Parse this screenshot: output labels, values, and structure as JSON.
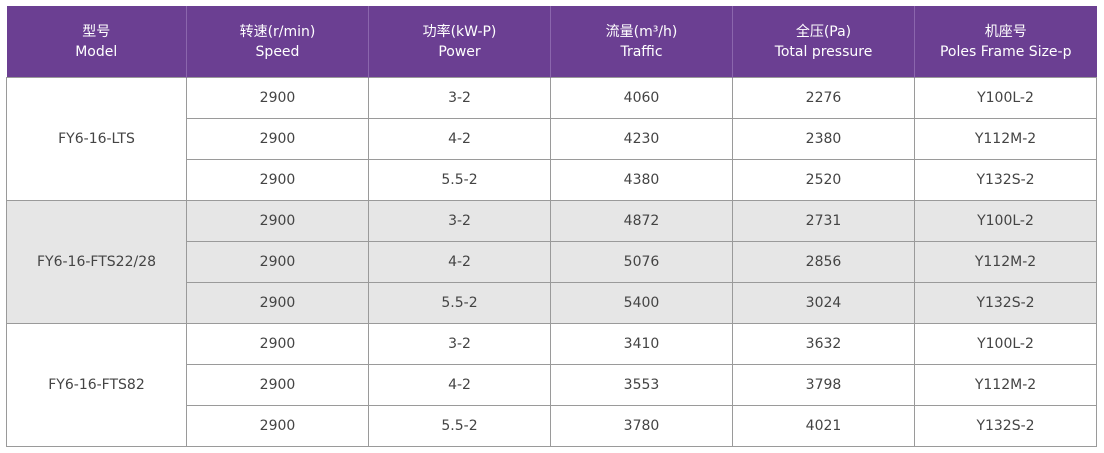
{
  "table": {
    "headers": [
      {
        "cn": "型号",
        "en": "Model"
      },
      {
        "cn": "转速(r/min)",
        "en": "Speed"
      },
      {
        "cn": "功率(kW-P)",
        "en": "Power"
      },
      {
        "cn": "流量(m³/h)",
        "en": "Traffic"
      },
      {
        "cn": "全压(Pa)",
        "en": "Total pressure"
      },
      {
        "cn": "机座号",
        "en": "Poles Frame Size-p"
      }
    ],
    "groups": [
      {
        "model": "FY6-16-LTS",
        "background": "#ffffff",
        "rows": [
          {
            "speed": "2900",
            "power": "3-2",
            "traffic": "4060",
            "pressure": "2276",
            "frame": "Y100L-2"
          },
          {
            "speed": "2900",
            "power": "4-2",
            "traffic": "4230",
            "pressure": "2380",
            "frame": "Y112M-2"
          },
          {
            "speed": "2900",
            "power": "5.5-2",
            "traffic": "4380",
            "pressure": "2520",
            "frame": "Y132S-2"
          }
        ]
      },
      {
        "model": "FY6-16-FTS22/28",
        "background": "#e6e6e6",
        "rows": [
          {
            "speed": "2900",
            "power": "3-2",
            "traffic": "4872",
            "pressure": "2731",
            "frame": "Y100L-2"
          },
          {
            "speed": "2900",
            "power": "4-2",
            "traffic": "5076",
            "pressure": "2856",
            "frame": "Y112M-2"
          },
          {
            "speed": "2900",
            "power": "5.5-2",
            "traffic": "5400",
            "pressure": "3024",
            "frame": "Y132S-2"
          }
        ]
      },
      {
        "model": "FY6-16-FTS82",
        "background": "#ffffff",
        "rows": [
          {
            "speed": "2900",
            "power": "3-2",
            "traffic": "3410",
            "pressure": "3632",
            "frame": "Y100L-2"
          },
          {
            "speed": "2900",
            "power": "4-2",
            "traffic": "3553",
            "pressure": "3798",
            "frame": "Y112M-2"
          },
          {
            "speed": "2900",
            "power": "5.5-2",
            "traffic": "3780",
            "pressure": "4021",
            "frame": "Y132S-2"
          }
        ]
      }
    ]
  },
  "colors": {
    "header_bg": "#6b3f92",
    "header_text": "#ffffff",
    "alt_group_bg": "#e6e6e6",
    "border": "#9a9a9a",
    "body_text": "#444444"
  }
}
